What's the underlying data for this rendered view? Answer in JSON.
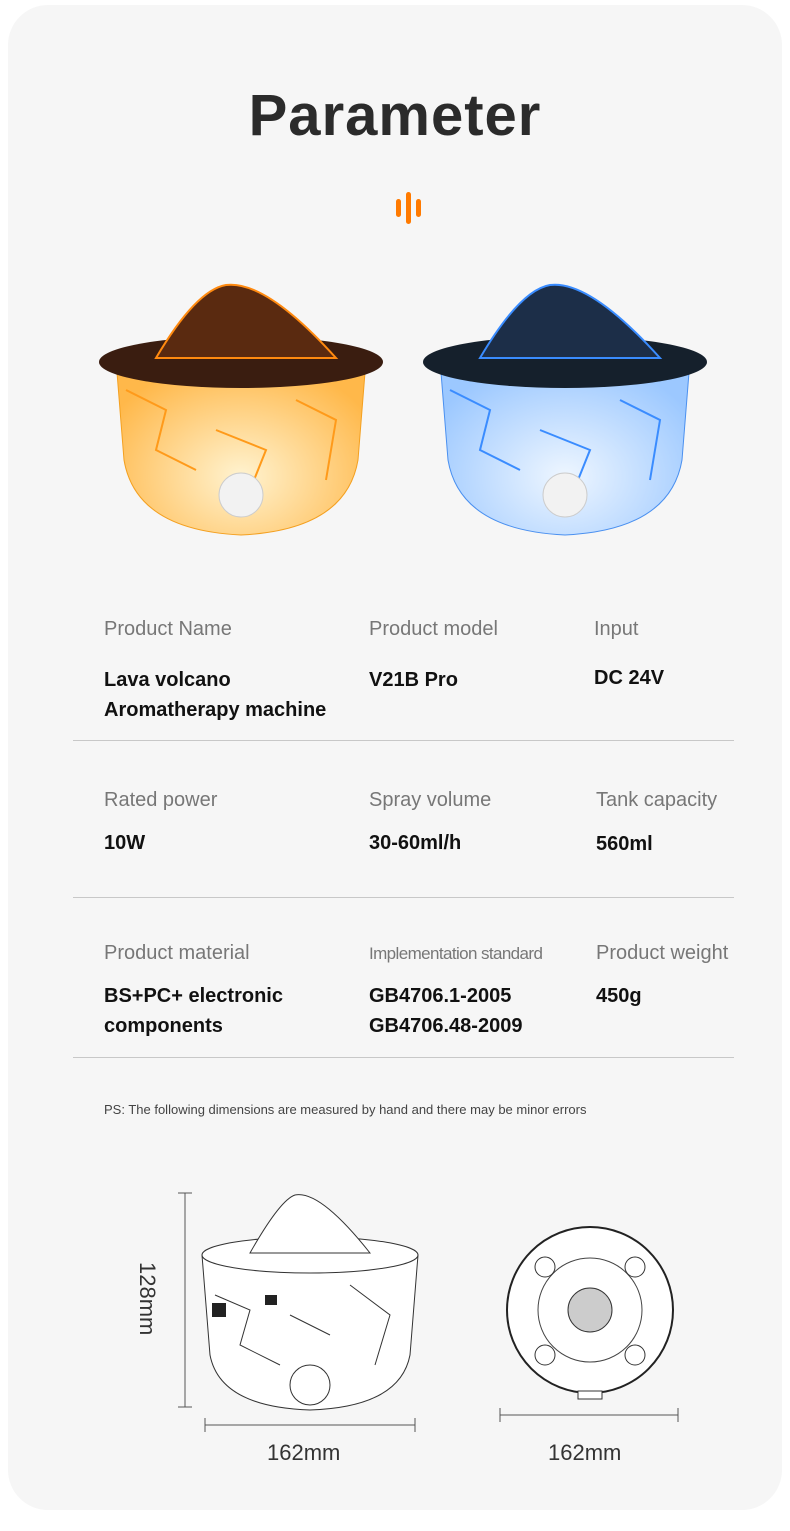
{
  "title": "Parameter",
  "accent_color": "#ff7a00",
  "products": [
    {
      "variant": "orange lava",
      "glow_color": "#ff9a1a"
    },
    {
      "variant": "blue lava",
      "glow_color": "#3a8cff"
    }
  ],
  "specs": [
    [
      {
        "label": "Product Name",
        "value": "Lava volcano Aromatherapy machine"
      },
      {
        "label": "Product model",
        "value": "V21B Pro"
      },
      {
        "label": "Input",
        "value": "DC 24V"
      }
    ],
    [
      {
        "label": "Rated power",
        "value": "10W"
      },
      {
        "label": "Spray volume",
        "value": "30-60ml/h"
      },
      {
        "label": "Tank capacity",
        "value": "560ml"
      }
    ],
    [
      {
        "label": "Product material",
        "value": "BS+PC+ electronic components"
      },
      {
        "label": "Implementation standard",
        "value": "GB4706.1-2005\nGB4706.48-2009"
      },
      {
        "label": "Product weight",
        "value": "450g"
      }
    ]
  ],
  "note": "PS: The following dimensions are measured by hand and there may be minor errors",
  "dimensions": {
    "height": "128mm",
    "side_width": "162mm",
    "bottom_width": "162mm"
  }
}
